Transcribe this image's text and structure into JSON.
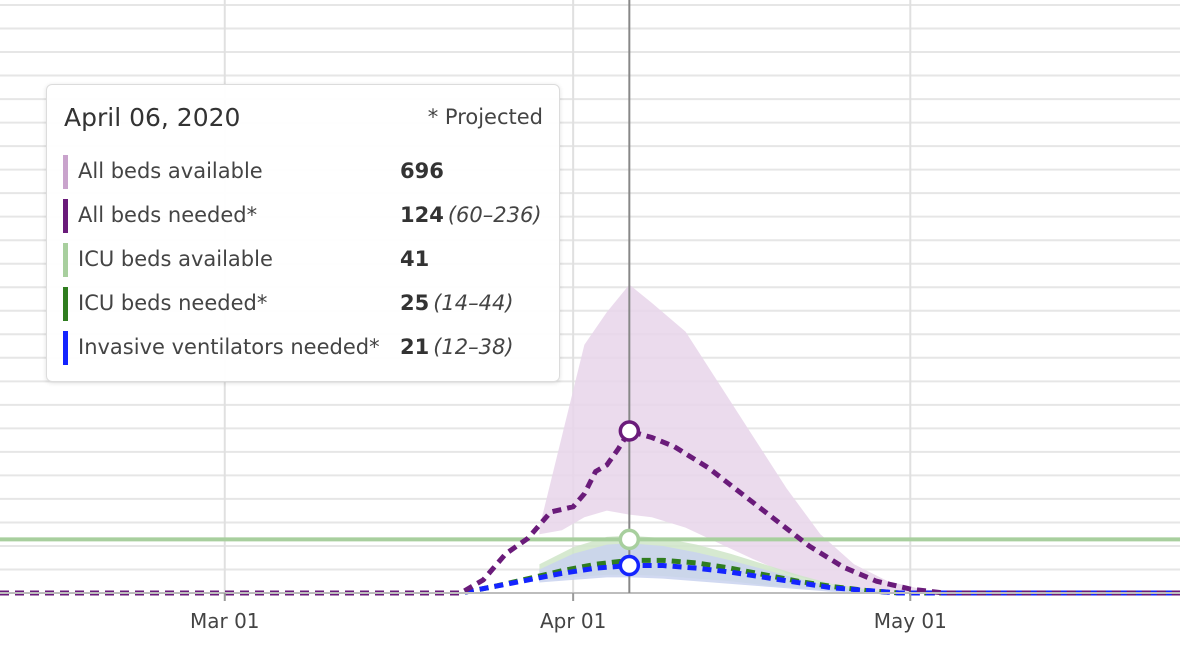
{
  "tooltip": {
    "date": "April 06, 2020",
    "projected_note": "* Projected",
    "rows": [
      {
        "label": "All beds available",
        "value": "696",
        "range": "",
        "color": "#c9a3cc"
      },
      {
        "label": "All beds needed*",
        "value": "124",
        "range": "(60–236)",
        "color": "#6a1b7a"
      },
      {
        "label": "ICU beds available",
        "value": "41",
        "range": "",
        "color": "#a8cf9e"
      },
      {
        "label": "ICU beds needed*",
        "value": "25",
        "range": "(14–44)",
        "color": "#2f7d1f"
      },
      {
        "label": "Invasive ventilators needed*",
        "value": "21",
        "range": "(12–38)",
        "color": "#1424ff"
      }
    ]
  },
  "chart_data": {
    "type": "line",
    "x_ticks": [
      "Mar 01",
      "Apr 01",
      "May 01"
    ],
    "xlim": [
      "2020-02-10",
      "2020-05-25"
    ],
    "ylim": [
      0,
      450
    ],
    "grid": true,
    "cursor_date": "2020-04-06",
    "colors": {
      "all_beds_band": "#e7d5ea",
      "all_beds_line": "#6a1b7a",
      "icu_available": "#a8cf9e",
      "icu_band": "#cfe5c8",
      "icu_line": "#2f7d1f",
      "vent_band": "#c9d2ee",
      "vent_line": "#1424ff",
      "cursor": "#888888"
    },
    "series": [
      {
        "name": "All beds needed*",
        "style": "dashed",
        "points": [
          [
            "2020-02-10",
            0
          ],
          [
            "2020-03-22",
            0
          ],
          [
            "2020-03-24",
            10
          ],
          [
            "2020-03-26",
            30
          ],
          [
            "2020-03-28",
            42
          ],
          [
            "2020-03-30",
            62
          ],
          [
            "2020-04-01",
            66
          ],
          [
            "2020-04-02",
            76
          ],
          [
            "2020-04-03",
            93
          ],
          [
            "2020-04-04",
            98
          ],
          [
            "2020-04-05",
            110
          ],
          [
            "2020-04-06",
            124
          ],
          [
            "2020-04-08",
            119
          ],
          [
            "2020-04-10",
            112
          ],
          [
            "2020-04-13",
            96
          ],
          [
            "2020-04-16",
            76
          ],
          [
            "2020-04-19",
            56
          ],
          [
            "2020-04-22",
            36
          ],
          [
            "2020-04-25",
            20
          ],
          [
            "2020-04-28",
            9
          ],
          [
            "2020-05-01",
            3
          ],
          [
            "2020-05-04",
            0
          ],
          [
            "2020-05-25",
            0
          ]
        ],
        "band": [
          [
            "2020-03-29",
            45,
            50
          ],
          [
            "2020-03-31",
            48,
            120
          ],
          [
            "2020-04-02",
            58,
            190
          ],
          [
            "2020-04-04",
            63,
            215
          ],
          [
            "2020-04-06",
            60,
            236
          ],
          [
            "2020-04-08",
            58,
            222
          ],
          [
            "2020-04-11",
            50,
            200
          ],
          [
            "2020-04-14",
            38,
            160
          ],
          [
            "2020-04-17",
            26,
            120
          ],
          [
            "2020-04-20",
            15,
            80
          ],
          [
            "2020-04-23",
            8,
            45
          ],
          [
            "2020-04-26",
            3,
            22
          ],
          [
            "2020-04-29",
            1,
            9
          ],
          [
            "2020-05-02",
            0,
            3
          ],
          [
            "2020-05-05",
            0,
            0
          ]
        ]
      },
      {
        "name": "ICU beds available",
        "style": "solid",
        "constant": 41
      },
      {
        "name": "ICU beds needed*",
        "style": "dashed",
        "points": [
          [
            "2020-02-10",
            0
          ],
          [
            "2020-03-22",
            0
          ],
          [
            "2020-03-25",
            5
          ],
          [
            "2020-03-28",
            11
          ],
          [
            "2020-03-31",
            17
          ],
          [
            "2020-04-03",
            22
          ],
          [
            "2020-04-06",
            25
          ],
          [
            "2020-04-09",
            25
          ],
          [
            "2020-04-12",
            23
          ],
          [
            "2020-04-15",
            19
          ],
          [
            "2020-04-18",
            14
          ],
          [
            "2020-04-21",
            9
          ],
          [
            "2020-04-24",
            5
          ],
          [
            "2020-04-27",
            2
          ],
          [
            "2020-04-30",
            0
          ],
          [
            "2020-05-25",
            0
          ]
        ],
        "band": [
          [
            "2020-03-29",
            10,
            22
          ],
          [
            "2020-04-01",
            12,
            35
          ],
          [
            "2020-04-04",
            14,
            43
          ],
          [
            "2020-04-06",
            14,
            44
          ],
          [
            "2020-04-09",
            13,
            42
          ],
          [
            "2020-04-12",
            11,
            37
          ],
          [
            "2020-04-15",
            9,
            30
          ],
          [
            "2020-04-18",
            6,
            22
          ],
          [
            "2020-04-21",
            4,
            14
          ],
          [
            "2020-04-24",
            2,
            7
          ],
          [
            "2020-04-27",
            0,
            3
          ],
          [
            "2020-04-30",
            0,
            0
          ]
        ]
      },
      {
        "name": "Invasive ventilators needed*",
        "style": "dashed",
        "points": [
          [
            "2020-02-10",
            0
          ],
          [
            "2020-03-22",
            0
          ],
          [
            "2020-03-25",
            5
          ],
          [
            "2020-03-28",
            10
          ],
          [
            "2020-03-31",
            15
          ],
          [
            "2020-04-03",
            19
          ],
          [
            "2020-04-06",
            21
          ],
          [
            "2020-04-09",
            21
          ],
          [
            "2020-04-12",
            19
          ],
          [
            "2020-04-15",
            16
          ],
          [
            "2020-04-18",
            12
          ],
          [
            "2020-04-21",
            8
          ],
          [
            "2020-04-24",
            4
          ],
          [
            "2020-04-27",
            2
          ],
          [
            "2020-04-30",
            0
          ],
          [
            "2020-05-25",
            0
          ]
        ],
        "band": [
          [
            "2020-03-29",
            8,
            18
          ],
          [
            "2020-04-01",
            10,
            30
          ],
          [
            "2020-04-04",
            12,
            37
          ],
          [
            "2020-04-06",
            12,
            38
          ],
          [
            "2020-04-09",
            11,
            36
          ],
          [
            "2020-04-12",
            9,
            31
          ],
          [
            "2020-04-15",
            7,
            25
          ],
          [
            "2020-04-18",
            5,
            18
          ],
          [
            "2020-04-21",
            3,
            11
          ],
          [
            "2020-04-24",
            1,
            5
          ],
          [
            "2020-04-27",
            0,
            2
          ],
          [
            "2020-04-30",
            0,
            0
          ]
        ]
      }
    ]
  }
}
